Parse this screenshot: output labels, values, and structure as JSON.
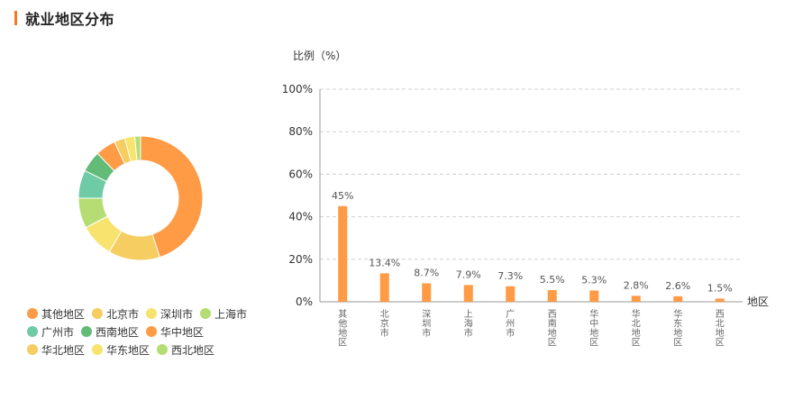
{
  "section_title": "就业地区分布",
  "colors": {
    "accent": "#f47920",
    "bar": "#ff9a45",
    "grid": "#d0d0d0",
    "axis": "#999999"
  },
  "chart_data": [
    {
      "type": "pie",
      "variant": "donut",
      "legend_placement": "bottom-left",
      "categories": [
        "其他地区",
        "北京市",
        "深圳市",
        "上海市",
        "广州市",
        "西南地区",
        "华中地区",
        "华北地区",
        "华东地区",
        "西北地区"
      ],
      "values": [
        45,
        13.4,
        8.7,
        7.9,
        7.3,
        5.5,
        5.3,
        2.8,
        2.6,
        1.5
      ],
      "colors": [
        "#ff9a45",
        "#f5cd60",
        "#f7e36e",
        "#b6dd74",
        "#6fcaa6",
        "#62bc78",
        "#ff9a45",
        "#f5cd60",
        "#f7e36e",
        "#b6dd74"
      ]
    },
    {
      "type": "bar",
      "categories": [
        "其他地区",
        "北京市",
        "深圳市",
        "上海市",
        "广州市",
        "西南地区",
        "华中地区",
        "华北地区",
        "华东地区",
        "西北地区"
      ],
      "values": [
        45,
        13.4,
        8.7,
        7.9,
        7.3,
        5.5,
        5.3,
        2.8,
        2.6,
        1.5
      ],
      "value_labels": [
        "45%",
        "13.4%",
        "8.7%",
        "7.9%",
        "7.3%",
        "5.5%",
        "5.3%",
        "2.8%",
        "2.6%",
        "1.5%"
      ],
      "ylabel": "比例（%）",
      "xlabel": "地区",
      "ylim": [
        0,
        100
      ],
      "yticks": [
        "0%",
        "20%",
        "40%",
        "60%",
        "80%",
        "100%"
      ],
      "grid": true
    }
  ]
}
